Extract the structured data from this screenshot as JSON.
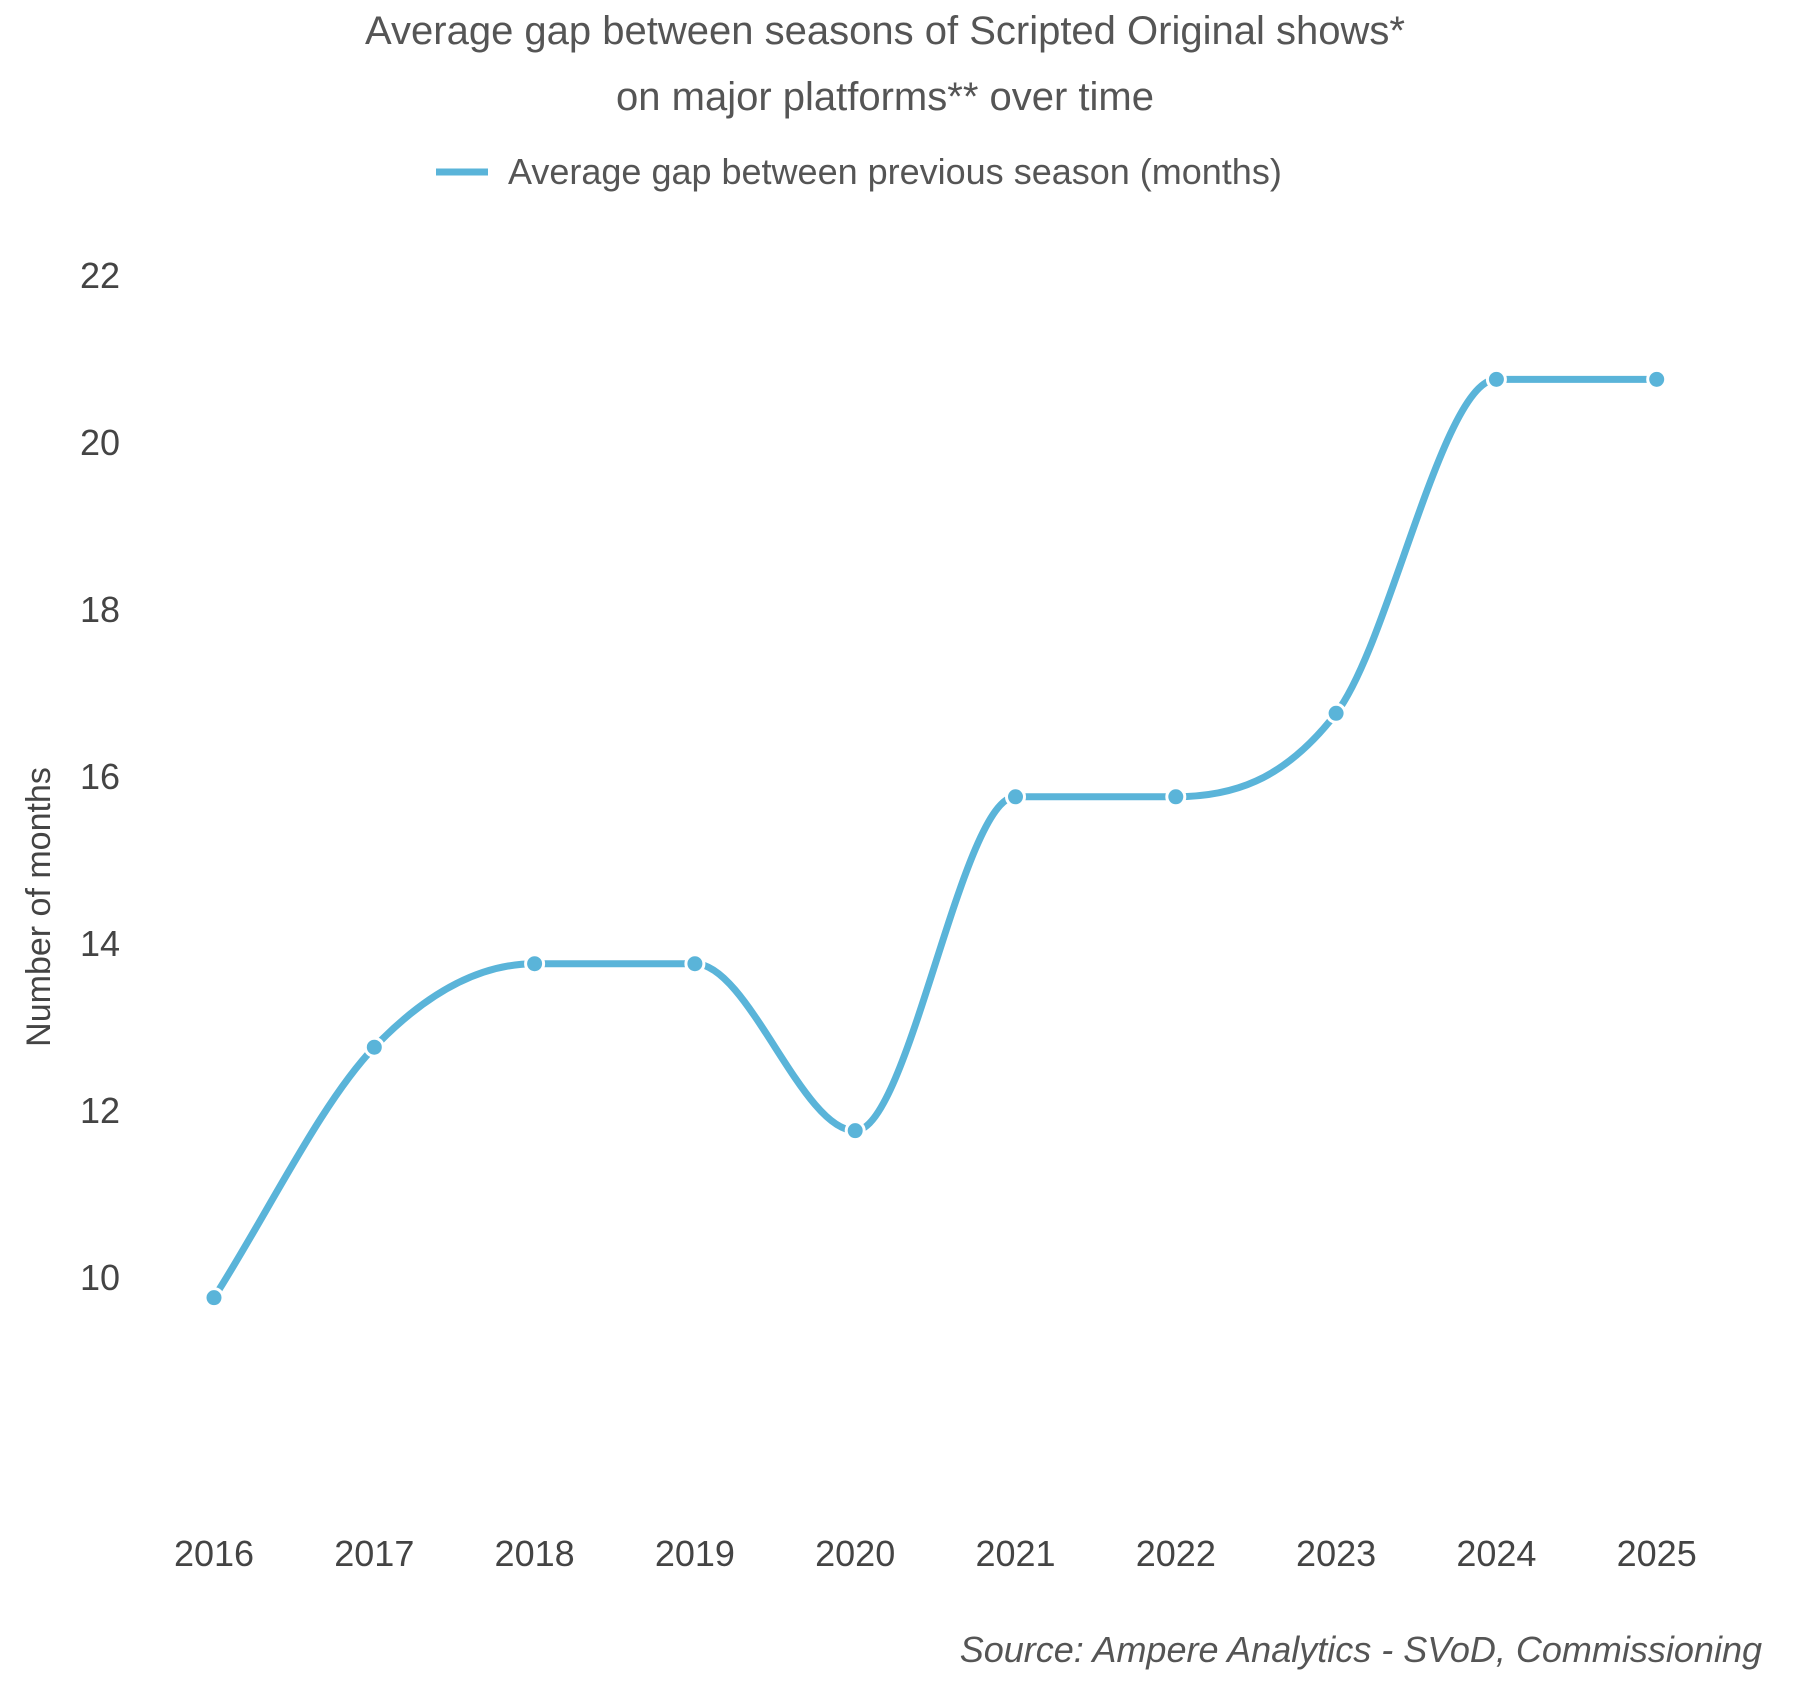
{
  "chart_data": {
    "type": "line",
    "title_lines": [
      "Average gap between seasons of Scripted Original shows*",
      "on major platforms** over time"
    ],
    "ylabel": "Number of months",
    "xlabel": "",
    "categories": [
      "2016",
      "2017",
      "2018",
      "2019",
      "2020",
      "2021",
      "2022",
      "2023",
      "2024",
      "2025"
    ],
    "series": [
      {
        "name": "Average gap between previous season (months)",
        "color": "#5ab4d9",
        "values": [
          9.75,
          12.75,
          13.75,
          13.75,
          11.75,
          15.75,
          15.75,
          16.75,
          20.75,
          20.75
        ]
      }
    ],
    "yticks": [
      10,
      12,
      14,
      16,
      18,
      20,
      22
    ],
    "ylim": [
      8.5,
      22
    ],
    "grid": false,
    "legend_position": "top-center",
    "smooth": true
  },
  "source": "Source: Ampere Analytics - SVoD, Commissioning"
}
